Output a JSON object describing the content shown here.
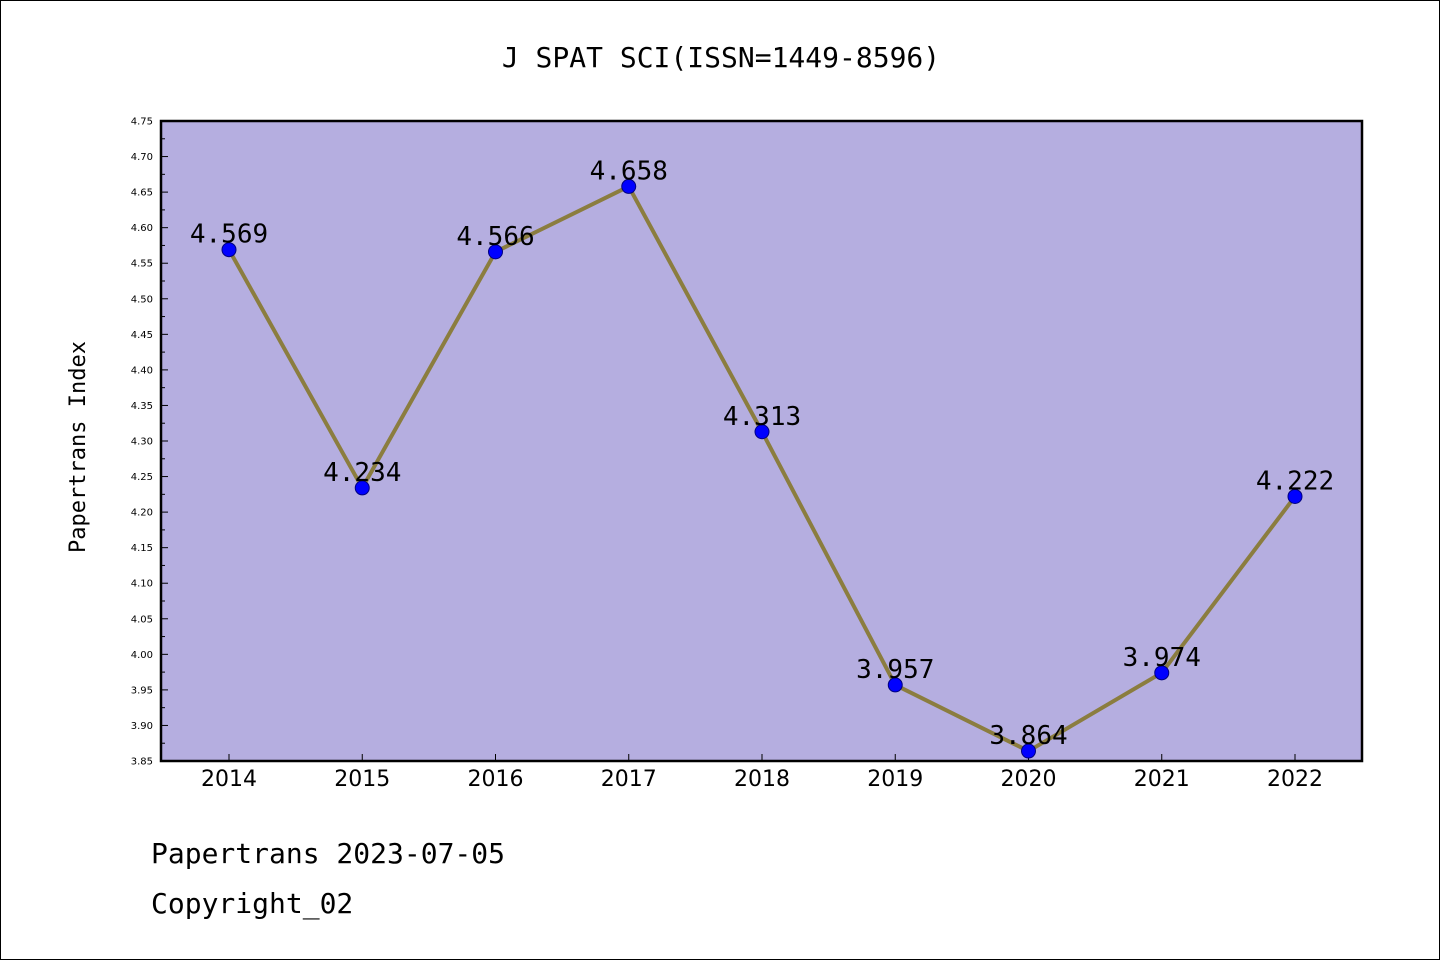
{
  "chart_data": {
    "type": "line",
    "title": "J SPAT SCI(ISSN=1449-8596)",
    "xlabel": "",
    "ylabel": "Papertrans Index",
    "categories": [
      "2014",
      "2015",
      "2016",
      "2017",
      "2018",
      "2019",
      "2020",
      "2021",
      "2022"
    ],
    "values": [
      4.569,
      4.234,
      4.566,
      4.658,
      4.313,
      3.957,
      3.864,
      3.974,
      4.222
    ],
    "data_labels": [
      "4.569",
      "4.234",
      "4.566",
      "4.658",
      "4.313",
      "3.957",
      "3.864",
      "3.974",
      "4.222"
    ],
    "ylim": [
      3.85,
      4.75
    ],
    "yticks": [
      3.85,
      3.9,
      3.95,
      4.0,
      4.05,
      4.1,
      4.15,
      4.2,
      4.25,
      4.3,
      4.35,
      4.4,
      4.45,
      4.5,
      4.55,
      4.6,
      4.65,
      4.7,
      4.75
    ],
    "ytick_labels": [
      "3.85",
      "3.90",
      "3.95",
      "4.00",
      "4.05",
      "4.10",
      "4.15",
      "4.20",
      "4.25",
      "4.30",
      "4.35",
      "4.40",
      "4.45",
      "4.50",
      "4.55",
      "4.60",
      "4.65",
      "4.70",
      "4.75"
    ],
    "grid": false,
    "legend": "none",
    "colors": {
      "plot_background": "#b5aee0",
      "line": "#8b7d3f",
      "marker": "#0000ff",
      "marker_edge": "#000080"
    }
  },
  "footer": {
    "date_text": "Papertrans 2023-07-05",
    "copyright_text": "Copyright_02"
  }
}
